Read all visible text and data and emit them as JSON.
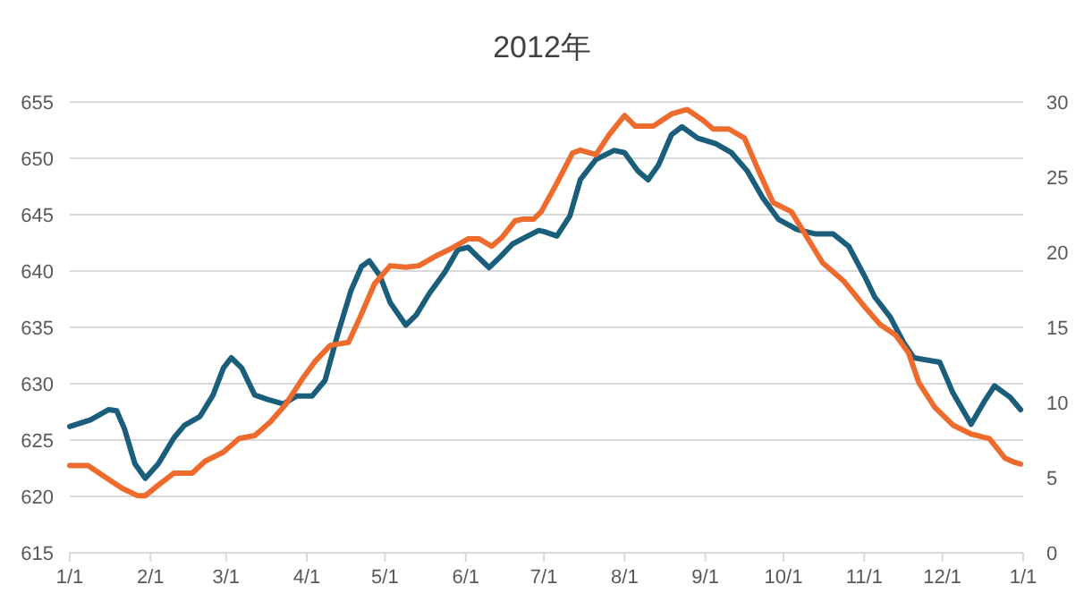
{
  "chart_data": {
    "type": "line",
    "title": "2012年",
    "xlim": [
      "2012-01-01",
      "2013-01-01"
    ],
    "xticks": [
      {
        "value": "2012-01-01",
        "label": "1/1"
      },
      {
        "value": "2012-02-01",
        "label": "2/1"
      },
      {
        "value": "2012-03-01",
        "label": "3/1"
      },
      {
        "value": "2012-04-01",
        "label": "4/1"
      },
      {
        "value": "2012-05-01",
        "label": "5/1"
      },
      {
        "value": "2012-06-01",
        "label": "6/1"
      },
      {
        "value": "2012-07-01",
        "label": "7/1"
      },
      {
        "value": "2012-08-01",
        "label": "8/1"
      },
      {
        "value": "2012-09-01",
        "label": "9/1"
      },
      {
        "value": "2012-10-01",
        "label": "10/1"
      },
      {
        "value": "2012-11-01",
        "label": "11/1"
      },
      {
        "value": "2012-12-01",
        "label": "12/1"
      },
      {
        "value": "2013-01-01",
        "label": "1/1"
      }
    ],
    "ylim": [
      615,
      655
    ],
    "yticks": [
      615,
      620,
      625,
      630,
      635,
      640,
      645,
      650,
      655
    ],
    "y2lim": [
      0,
      30
    ],
    "y2ticks": [
      0,
      5,
      10,
      15,
      20,
      25,
      30
    ],
    "grid": "y",
    "series": [
      {
        "color": "#1b5e7b",
        "axis": "y",
        "x": [
          "2012-01-01",
          "2012-01-09",
          "2012-01-16",
          "2012-01-19",
          "2012-01-22",
          "2012-01-26",
          "2012-01-30",
          "2012-02-04",
          "2012-02-10",
          "2012-02-14",
          "2012-02-20",
          "2012-02-25",
          "2012-02-29",
          "2012-03-03",
          "2012-03-07",
          "2012-03-12",
          "2012-03-17",
          "2012-03-23",
          "2012-03-28",
          "2012-04-03",
          "2012-04-08",
          "2012-04-13",
          "2012-04-18",
          "2012-04-22",
          "2012-04-25",
          "2012-04-29",
          "2012-05-03",
          "2012-05-09",
          "2012-05-13",
          "2012-05-18",
          "2012-05-24",
          "2012-05-29",
          "2012-06-02",
          "2012-06-05",
          "2012-06-10",
          "2012-06-14",
          "2012-06-19",
          "2012-06-24",
          "2012-06-29",
          "2012-07-01",
          "2012-07-06",
          "2012-07-11",
          "2012-07-15",
          "2012-07-21",
          "2012-07-28",
          "2012-08-01",
          "2012-08-06",
          "2012-08-10",
          "2012-08-14",
          "2012-08-19",
          "2012-08-23",
          "2012-08-29",
          "2012-09-05",
          "2012-09-11",
          "2012-09-17",
          "2012-09-23",
          "2012-09-29",
          "2012-10-06",
          "2012-10-13",
          "2012-10-20",
          "2012-10-26",
          "2012-11-01",
          "2012-11-05",
          "2012-11-11",
          "2012-11-16",
          "2012-11-20",
          "2012-11-30",
          "2012-12-05",
          "2012-12-12",
          "2012-12-17",
          "2012-12-21",
          "2012-12-27",
          "2012-12-31"
        ],
        "values": [
          626.2,
          626.8,
          627.7,
          627.6,
          626.0,
          622.9,
          621.6,
          622.9,
          625.2,
          626.3,
          627.1,
          629.0,
          631.4,
          632.3,
          631.4,
          629.0,
          628.6,
          628.2,
          628.9,
          628.9,
          630.3,
          634.5,
          638.3,
          640.4,
          640.9,
          639.6,
          637.2,
          635.2,
          636.1,
          638.0,
          639.9,
          641.9,
          642.1,
          641.4,
          640.3,
          641.2,
          642.4,
          643.0,
          643.6,
          643.5,
          643.1,
          644.9,
          648.1,
          649.9,
          650.7,
          650.5,
          648.9,
          648.1,
          649.4,
          652.1,
          652.8,
          651.8,
          651.3,
          650.5,
          648.9,
          646.5,
          644.6,
          643.7,
          643.3,
          643.3,
          642.2,
          639.6,
          637.7,
          635.9,
          633.7,
          632.3,
          631.9,
          629.2,
          626.4,
          628.4,
          629.8,
          628.8,
          627.7
        ]
      },
      {
        "color": "#ec6b2d",
        "axis": "y2",
        "x": [
          "2012-01-01",
          "2012-01-08",
          "2012-01-14",
          "2012-01-21",
          "2012-01-27",
          "2012-01-30",
          "2012-02-04",
          "2012-02-10",
          "2012-02-17",
          "2012-02-22",
          "2012-02-29",
          "2012-03-06",
          "2012-03-12",
          "2012-03-18",
          "2012-03-24",
          "2012-03-30",
          "2012-04-04",
          "2012-04-10",
          "2012-04-17",
          "2012-04-21",
          "2012-04-27",
          "2012-05-03",
          "2012-05-09",
          "2012-05-14",
          "2012-05-20",
          "2012-05-27",
          "2012-06-02",
          "2012-06-06",
          "2012-06-11",
          "2012-06-15",
          "2012-06-20",
          "2012-06-23",
          "2012-06-27",
          "2012-06-30",
          "2012-07-06",
          "2012-07-12",
          "2012-07-15",
          "2012-07-21",
          "2012-07-26",
          "2012-08-01",
          "2012-08-05",
          "2012-08-12",
          "2012-08-19",
          "2012-08-25",
          "2012-08-31",
          "2012-09-04",
          "2012-09-10",
          "2012-09-16",
          "2012-09-22",
          "2012-09-27",
          "2012-10-04",
          "2012-10-10",
          "2012-10-16",
          "2012-10-24",
          "2012-11-01",
          "2012-11-07",
          "2012-11-13",
          "2012-11-18",
          "2012-11-22",
          "2012-11-28",
          "2012-12-05",
          "2012-12-12",
          "2012-12-19",
          "2012-12-25",
          "2012-12-29",
          "2012-12-31"
        ],
        "values": [
          5.8,
          5.8,
          5.1,
          4.3,
          3.8,
          3.8,
          4.5,
          5.3,
          5.3,
          6.1,
          6.7,
          7.6,
          7.8,
          8.7,
          9.9,
          11.5,
          12.7,
          13.8,
          14.0,
          15.5,
          17.9,
          19.1,
          19.0,
          19.1,
          19.7,
          20.3,
          20.9,
          20.9,
          20.4,
          21.0,
          22.1,
          22.2,
          22.2,
          22.7,
          24.6,
          26.6,
          26.8,
          26.5,
          27.8,
          29.1,
          28.4,
          28.4,
          29.2,
          29.5,
          28.8,
          28.2,
          28.2,
          27.6,
          25.2,
          23.3,
          22.7,
          21.0,
          19.3,
          18.1,
          16.4,
          15.2,
          14.5,
          13.3,
          11.3,
          9.7,
          8.5,
          7.9,
          7.6,
          6.3,
          6.0,
          5.9
        ]
      }
    ]
  }
}
